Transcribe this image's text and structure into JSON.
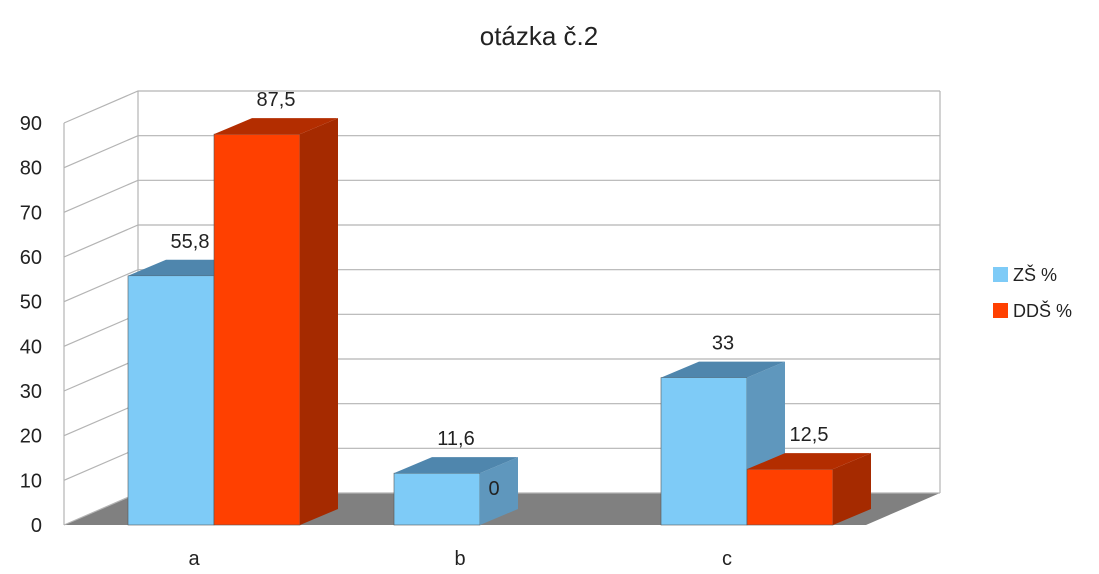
{
  "chart_data": {
    "type": "bar",
    "title": "otázka č.2",
    "categories": [
      "a",
      "b",
      "c"
    ],
    "series": [
      {
        "name": "ZŠ %",
        "values": [
          55.8,
          11.6,
          33
        ],
        "value_labels": [
          "55,8",
          "11,6",
          "33"
        ],
        "color": "#7ecbf7",
        "side_color": "#5f97bd",
        "top_color": "#4f86ad"
      },
      {
        "name": "DDŠ %",
        "values": [
          87.5,
          0,
          12.5
        ],
        "value_labels": [
          "87,5",
          "0",
          "12,5"
        ],
        "color": "#ff4000",
        "side_color": "#a52a00",
        "top_color": "#b32d00"
      }
    ],
    "ylim": [
      0,
      90
    ],
    "yticks": [
      "0",
      "10",
      "20",
      "30",
      "40",
      "50",
      "60",
      "70",
      "80",
      "90"
    ],
    "grid": true,
    "legend_position": "right",
    "style": "3d-clustered-column",
    "floor_color": "#808080"
  }
}
